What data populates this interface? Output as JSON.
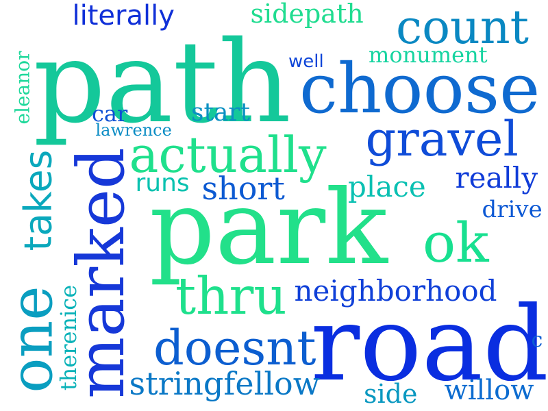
{
  "word_cloud": {
    "words": [
      {
        "text": "park",
        "color": "#22e08a"
      },
      {
        "text": "path",
        "color": "#14c89a"
      },
      {
        "text": "road",
        "color": "#0a2ee0"
      },
      {
        "text": "choose",
        "color": "#0f6ad0"
      },
      {
        "text": "marked",
        "color": "#1638d8"
      },
      {
        "text": "one",
        "color": "#0a9ec0"
      },
      {
        "text": "actually",
        "color": "#1fe08c"
      },
      {
        "text": "gravel",
        "color": "#0f4cd8"
      },
      {
        "text": "count",
        "color": "#0a88c2"
      },
      {
        "text": "ok",
        "color": "#18e090"
      },
      {
        "text": "doesnt",
        "color": "#0c5ed0"
      },
      {
        "text": "thru",
        "color": "#1ee08c"
      },
      {
        "text": "takes",
        "color": "#0aa8bc"
      },
      {
        "text": "neighborhood",
        "color": "#1040d8"
      },
      {
        "text": "stringfellow",
        "color": "#0a78c6"
      },
      {
        "text": "short",
        "color": "#0c5ad2"
      },
      {
        "text": "literally",
        "color": "#1030d8"
      },
      {
        "text": "willow",
        "color": "#0c6cd0"
      },
      {
        "text": "really",
        "color": "#103cd8"
      },
      {
        "text": "sidepath",
        "color": "#20dc90"
      },
      {
        "text": "place",
        "color": "#0ac0b2"
      },
      {
        "text": "runs",
        "color": "#0ac2b0"
      },
      {
        "text": "side",
        "color": "#0a98c0"
      },
      {
        "text": "start",
        "color": "#0a90c2"
      },
      {
        "text": "monument",
        "color": "#16d4a0"
      },
      {
        "text": "therenice",
        "color": "#0ab2b8"
      },
      {
        "text": "drive",
        "color": "#0c58d4"
      },
      {
        "text": "eleanor",
        "color": "#1ed89a"
      },
      {
        "text": "car",
        "color": "#0c50d4"
      },
      {
        "text": "well",
        "color": "#0c44d8"
      },
      {
        "text": "lawrence",
        "color": "#0a8cc4"
      },
      {
        "text": "c",
        "color": "#0c5cd2"
      }
    ]
  }
}
